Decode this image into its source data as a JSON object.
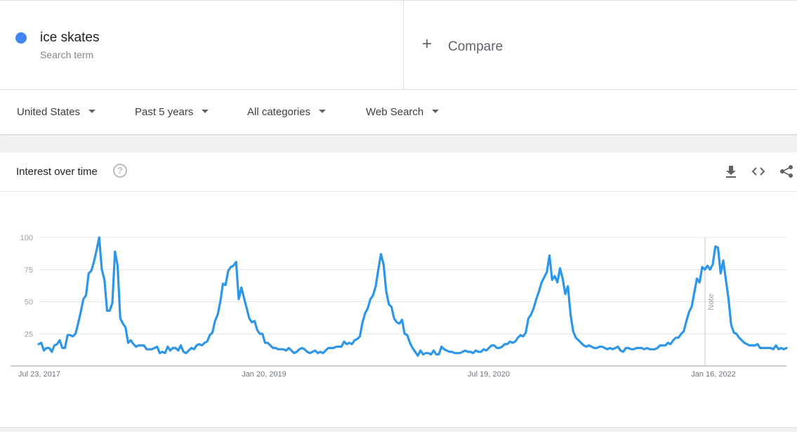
{
  "search_term": {
    "name": "ice skates",
    "sublabel": "Search term",
    "color": "#4285f4"
  },
  "compare": {
    "icon": "plus-icon",
    "label": "Compare"
  },
  "filters": {
    "region": "United States",
    "time_range": "Past 5 years",
    "category": "All categories",
    "search_type": "Web Search"
  },
  "card": {
    "title": "Interest over time",
    "help_icon": "help-icon",
    "help_glyph": "?",
    "actions": [
      "download-icon",
      "embed-icon",
      "share-icon"
    ]
  },
  "chart_data": {
    "type": "line",
    "title": "",
    "xlabel": "",
    "ylabel": "",
    "ylim": [
      0,
      100
    ],
    "yticks": [
      25,
      50,
      75,
      100
    ],
    "x_tick_labels": [
      "Jul 23, 2017",
      "Jan 20, 2019",
      "Jul 19, 2020",
      "Jan 16, 2022"
    ],
    "x_start": "Jul 23, 2017",
    "x_interval": "weekly",
    "annotation": "Note",
    "annotation_at": "Jan 2, 2022",
    "grid": true,
    "series": [
      {
        "name": "ice skates",
        "color": "#2d96e8",
        "values": [
          17,
          18,
          12,
          14,
          14,
          11,
          16,
          17,
          20,
          14,
          14,
          24,
          24,
          23,
          25,
          33,
          42,
          52,
          55,
          72,
          74,
          81,
          90,
          100,
          75,
          67,
          43,
          43,
          49,
          89,
          78,
          37,
          33,
          30,
          18,
          20,
          17,
          15,
          16,
          16,
          16,
          13,
          13,
          13,
          14,
          15,
          10,
          11,
          10,
          15,
          12,
          14,
          14,
          12,
          16,
          11,
          10,
          12,
          14,
          13,
          16,
          17,
          16,
          18,
          19,
          24,
          26,
          35,
          40,
          50,
          64,
          63,
          74,
          77,
          78,
          81,
          52,
          61,
          53,
          45,
          37,
          34,
          35,
          28,
          25,
          25,
          18,
          18,
          16,
          14,
          14,
          13,
          13,
          13,
          12,
          14,
          12,
          10,
          11,
          13,
          14,
          13,
          11,
          10,
          11,
          12,
          10,
          11,
          10,
          12,
          14,
          14,
          14,
          15,
          15,
          15,
          19,
          17,
          18,
          17,
          20,
          21,
          23,
          34,
          41,
          45,
          52,
          55,
          62,
          75,
          87,
          79,
          58,
          48,
          46,
          37,
          34,
          33,
          36,
          25,
          24,
          18,
          14,
          11,
          8,
          12,
          9,
          10,
          10,
          9,
          12,
          9,
          9,
          15,
          13,
          12,
          11,
          11,
          10,
          10,
          10,
          11,
          12,
          11,
          11,
          10,
          12,
          11,
          11,
          13,
          12,
          14,
          16,
          16,
          14,
          14,
          15,
          17,
          17,
          19,
          18,
          19,
          22,
          24,
          23,
          26,
          37,
          40,
          45,
          52,
          58,
          65,
          69,
          73,
          86,
          67,
          70,
          65,
          76,
          68,
          56,
          62,
          40,
          27,
          22,
          20,
          18,
          16,
          15,
          16,
          15,
          14,
          14,
          15,
          15,
          14,
          13,
          14,
          13,
          14,
          15,
          12,
          11,
          14,
          14,
          13,
          13,
          14,
          14,
          14,
          13,
          14,
          13,
          13,
          13,
          14,
          16,
          16,
          16,
          18,
          17,
          20,
          22,
          22,
          25,
          27,
          35,
          42,
          46,
          57,
          68,
          65,
          77,
          75,
          78,
          75,
          79,
          93,
          92,
          72,
          82,
          67,
          52,
          32,
          26,
          25,
          22,
          20,
          18,
          17,
          16,
          16,
          16,
          17,
          14,
          14,
          14,
          14,
          14,
          13,
          16,
          13,
          14,
          13,
          14
        ]
      }
    ]
  }
}
